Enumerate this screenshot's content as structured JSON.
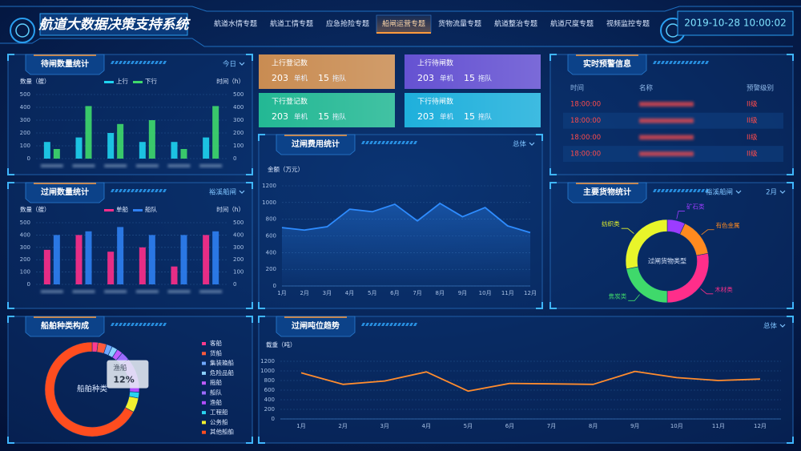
{
  "header": {
    "title": "航道大数据决策支持系统",
    "tabs": [
      "航道水情专题",
      "航道工情专题",
      "应急抢险专题",
      "船闸运营专题",
      "货物流量专题",
      "航道整治专题",
      "航道尺度专题",
      "视频监控专题"
    ],
    "active_tab": 3,
    "datetime": "2019-10-28 10:00:02"
  },
  "cards": [
    {
      "title": "上行登记数",
      "count": 203,
      "count_unit": "单机",
      "fleet": 15,
      "fleet_unit": "拖队",
      "color": "#c98c52"
    },
    {
      "title": "上行待闸数",
      "count": 203,
      "count_unit": "单机",
      "fleet": 15,
      "fleet_unit": "拖队",
      "color": "#6552d2"
    },
    {
      "title": "下行登记数",
      "count": 203,
      "count_unit": "单机",
      "fleet": 15,
      "fleet_unit": "拖队",
      "color": "#23b894"
    },
    {
      "title": "下行待闸数",
      "count": 203,
      "count_unit": "单机",
      "fleet": 15,
      "fleet_unit": "拖队",
      "color": "#1fb0dc"
    }
  ],
  "alerts": {
    "title": "实时预警信息",
    "columns": [
      "时间",
      "名称",
      "预警级别"
    ],
    "rows": [
      {
        "time": "18:00:00",
        "level": "II级"
      },
      {
        "time": "18:00:00",
        "level": "II级"
      },
      {
        "time": "18:00:00",
        "level": "II级"
      },
      {
        "time": "18:00:00",
        "level": "II级"
      }
    ]
  },
  "chart_data": [
    {
      "type": "bar",
      "title": "待闸数量统计",
      "filters": [
        "今日"
      ],
      "ylabel": "数量（艘）",
      "y2label": "时间（h）",
      "categories": [
        null,
        null,
        null,
        null,
        null,
        null
      ],
      "series": [
        {
          "name": "上行",
          "color": "#1fd3f0",
          "values": [
            130,
            165,
            200,
            130,
            130,
            165
          ]
        },
        {
          "name": "下行",
          "color": "#3fd96b",
          "values": [
            75,
            410,
            270,
            300,
            75,
            410
          ]
        }
      ],
      "ylim": [
        0,
        500
      ],
      "yticks": [
        0,
        100,
        200,
        300,
        400,
        500
      ],
      "y2lim": [
        0,
        500
      ],
      "y2ticks": [
        0,
        100,
        200,
        300,
        400,
        500
      ],
      "grid": true
    },
    {
      "type": "bar",
      "title": "过闸数量统计",
      "filters": [
        "裕溪船闸"
      ],
      "ylabel": "数量（艘）",
      "y2label": "时间（h）",
      "categories": [
        null,
        null,
        null,
        null,
        null,
        null
      ],
      "series": [
        {
          "name": "单船",
          "color": "#ff2e8a",
          "values": [
            280,
            400,
            265,
            300,
            145,
            400
          ]
        },
        {
          "name": "船队",
          "color": "#2f80f2",
          "values": [
            400,
            430,
            465,
            400,
            400,
            430
          ]
        }
      ],
      "ylim": [
        0,
        500
      ],
      "yticks": [
        0,
        100,
        200,
        300,
        400,
        500
      ],
      "y2lim": [
        0,
        500
      ],
      "y2ticks": [
        0,
        100,
        200,
        300,
        400,
        500
      ],
      "grid": true
    },
    {
      "type": "pie",
      "title": "船舶种类构成",
      "center_label": "船舶种类",
      "categories": [
        "客船",
        "货船",
        "集装箱船",
        "危险品船",
        "拖船",
        "船队",
        "渔船",
        "工程船",
        "公务船",
        "其他船舶"
      ],
      "values": [
        2,
        3,
        2,
        2,
        2,
        3,
        12,
        2,
        5,
        67
      ],
      "value_labels": [
        null,
        null,
        null,
        null,
        null,
        null,
        "12%",
        null,
        null,
        null
      ],
      "colors": [
        "#ff3b8e",
        "#ff5a3c",
        "#6fa8ff",
        "#8ad0ff",
        "#c05cff",
        "#9b6bff",
        "#b04dff",
        "#29d3f0",
        "#f1f02f",
        "#ff4d1f"
      ]
    },
    {
      "type": "line",
      "title": "过闸费用统计",
      "filters": [
        "总体"
      ],
      "ylabel": "金额（万元）",
      "categories": [
        "1月",
        "2月",
        "3月",
        "4月",
        "5月",
        "6月",
        "7月",
        "8月",
        "9月",
        "10月",
        "11月",
        "12月"
      ],
      "values": [
        700,
        670,
        710,
        920,
        890,
        980,
        780,
        990,
        830,
        940,
        720,
        640
      ],
      "color": "#2e8cff",
      "area": true,
      "ylim": [
        0,
        1200
      ],
      "yticks": [
        0,
        200,
        400,
        600,
        800,
        1000,
        1200
      ],
      "grid": true
    },
    {
      "type": "pie",
      "title": "主要货物统计",
      "filters": [
        "裕溪船闸",
        "2月"
      ],
      "center_label": "过闸货物类型",
      "categories": [
        "矿石类",
        "有色金属",
        "木材类",
        "焦炭类",
        "纺织类"
      ],
      "values": [
        7,
        15,
        28,
        22,
        28
      ],
      "colors": [
        "#9b3cff",
        "#ff8a1f",
        "#ff2e8a",
        "#3fd96b",
        "#e8f52a"
      ]
    },
    {
      "type": "line",
      "title": "过闸吨位趋势",
      "filters": [
        "总体"
      ],
      "ylabel": "载重（吨）",
      "categories": [
        "1月",
        "2月",
        "3月",
        "4月",
        "5月",
        "6月",
        "7月",
        "8月",
        "9月",
        "10月",
        "11月",
        "12月"
      ],
      "values": [
        960,
        720,
        790,
        980,
        580,
        740,
        730,
        720,
        990,
        860,
        800,
        830
      ],
      "color": "#ff8c2e",
      "area": false,
      "ylim": [
        0,
        1200
      ],
      "yticks": [
        0,
        200,
        400,
        600,
        800,
        1000,
        1200
      ],
      "grid": true
    }
  ]
}
